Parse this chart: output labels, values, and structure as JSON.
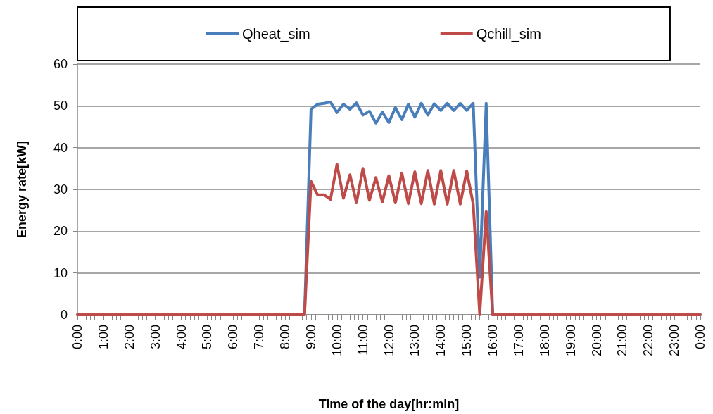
{
  "chart_data": {
    "type": "line",
    "xlabel": "Time of the day[hr:min]",
    "ylabel": "Energy rate[kW]",
    "x": [
      0,
      8.75,
      9,
      9.25,
      9.5,
      9.75,
      10,
      10.25,
      10.5,
      10.75,
      11,
      11.25,
      11.5,
      11.75,
      12,
      12.25,
      12.5,
      12.75,
      13,
      13.25,
      13.5,
      13.75,
      14,
      14.25,
      14.5,
      14.75,
      15,
      15.25,
      15.5,
      15.75,
      16,
      24
    ],
    "series": [
      {
        "name": "Qheat_sim",
        "color": "#4a7ebb",
        "values": [
          0,
          0,
          49.2,
          50.4,
          50.6,
          50.9,
          48.4,
          50.4,
          49.2,
          50.7,
          47.8,
          48.7,
          45.9,
          48.5,
          46.0,
          49.6,
          46.7,
          50.4,
          47.3,
          50.6,
          47.8,
          50.5,
          48.9,
          50.6,
          48.9,
          50.6,
          48.9,
          50.6,
          9,
          50.6,
          0,
          0
        ]
      },
      {
        "name": "Qchill_sim",
        "color": "#be4b48",
        "values": [
          0,
          0,
          31.9,
          28.7,
          28.7,
          27.6,
          36.0,
          27.9,
          33.5,
          26.8,
          35.0,
          27.4,
          32.8,
          27.0,
          33.3,
          26.8,
          33.9,
          26.6,
          34.2,
          26.6,
          34.5,
          26.5,
          34.5,
          26.5,
          34.5,
          26.5,
          34.4,
          26.5,
          0,
          24.8,
          0,
          0
        ]
      }
    ],
    "xlim": [
      0,
      24
    ],
    "xticks": [
      {
        "value": 0,
        "label": "0:00"
      },
      {
        "value": 1,
        "label": "1:00"
      },
      {
        "value": 2,
        "label": "2:00"
      },
      {
        "value": 3,
        "label": "3:00"
      },
      {
        "value": 4,
        "label": "4:00"
      },
      {
        "value": 5,
        "label": "5:00"
      },
      {
        "value": 6,
        "label": "6:00"
      },
      {
        "value": 7,
        "label": "7:00"
      },
      {
        "value": 8,
        "label": "8:00"
      },
      {
        "value": 9,
        "label": "9:00"
      },
      {
        "value": 10,
        "label": "10:00"
      },
      {
        "value": 11,
        "label": "11:00"
      },
      {
        "value": 12,
        "label": "12:00"
      },
      {
        "value": 13,
        "label": "13:00"
      },
      {
        "value": 14,
        "label": "14:00"
      },
      {
        "value": 15,
        "label": "15:00"
      },
      {
        "value": 16,
        "label": "16:00"
      },
      {
        "value": 17,
        "label": "17:00"
      },
      {
        "value": 18,
        "label": "18:00"
      },
      {
        "value": 19,
        "label": "19:00"
      },
      {
        "value": 20,
        "label": "20:00"
      },
      {
        "value": 21,
        "label": "21:00"
      },
      {
        "value": 22,
        "label": "22:00"
      },
      {
        "value": 23,
        "label": "23:00"
      },
      {
        "value": 24,
        "label": "0:00"
      }
    ],
    "ylim": [
      0,
      60
    ],
    "yticks": [
      0,
      10,
      20,
      30,
      40,
      50,
      60
    ],
    "grid": "y",
    "legend": "top",
    "marker": "none",
    "line_style": "solid"
  }
}
